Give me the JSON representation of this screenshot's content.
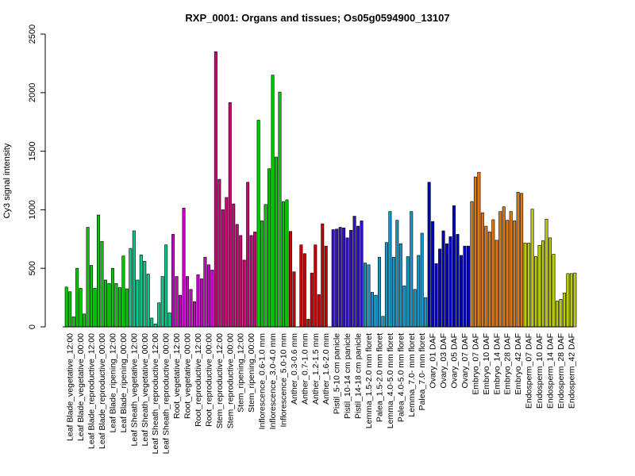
{
  "chart_data": {
    "type": "bar",
    "title": "RXP_0001: Organs and tissues; Os05g0594900_13107",
    "xlabel": "",
    "ylabel": "Cy3 signal intensity",
    "ylim": [
      0,
      2500
    ],
    "yticks": [
      0,
      500,
      1000,
      1500,
      2000,
      2500
    ],
    "grid": false,
    "legend": "none",
    "groups": [
      {
        "label": "Leaf Blade_vegetative_12:00",
        "color": "#00cc00",
        "values": [
          340,
          300,
          85
        ]
      },
      {
        "label": "Leaf Blade_vegetative_00:00",
        "color": "#00cc00",
        "values": [
          500,
          330,
          110
        ]
      },
      {
        "label": "Leaf Blade_reproductive_12:00",
        "color": "#00cc00",
        "values": [
          850,
          525,
          330
        ]
      },
      {
        "label": "Leaf Blade_reproductive_00:00",
        "color": "#00cc00",
        "values": [
          955,
          730,
          400
        ]
      },
      {
        "label": "Leaf Blade_ripening_12:00",
        "color": "#00cc00",
        "values": [
          370,
          500,
          370
        ]
      },
      {
        "label": "Leaf Blade_ripening_00:00",
        "color": "#00cc00",
        "values": [
          335,
          605,
          325
        ]
      },
      {
        "label": "Leaf Sheath_vegetative_12:00",
        "color": "#00cc88",
        "values": [
          670,
          820,
          400
        ]
      },
      {
        "label": "Leaf Sheath_vegetative_00:00",
        "color": "#00cc88",
        "values": [
          615,
          560,
          450
        ]
      },
      {
        "label": "Leaf Sheath_reproductive_12:00",
        "color": "#00cc88",
        "values": [
          75,
          25,
          205
        ]
      },
      {
        "label": "Leaf Sheath_reproductive_00:00",
        "color": "#00cc88",
        "values": [
          430,
          700,
          120
        ]
      },
      {
        "label": "Root_vegetative_12:00",
        "color": "#cc00cc",
        "values": [
          790,
          430,
          270
        ]
      },
      {
        "label": "Root_vegetative_00:00",
        "color": "#cc00cc",
        "values": [
          1015,
          430,
          320
        ]
      },
      {
        "label": "Root_reproductive_12:00",
        "color": "#cc00cc",
        "values": [
          215,
          445,
          410
        ]
      },
      {
        "label": "Root_reproductive_00:00",
        "color": "#cc00cc",
        "values": [
          595,
          530,
          485
        ]
      },
      {
        "label": "Stem_reproductive_12:00",
        "color": "#cc0077",
        "values": [
          2350,
          1260,
          1000
        ]
      },
      {
        "label": "Stem_reproductive_00:00",
        "color": "#cc0077",
        "values": [
          1105,
          1915,
          1050
        ]
      },
      {
        "label": "Stem_ripening_12:00",
        "color": "#cc0077",
        "values": [
          875,
          780,
          570
        ]
      },
      {
        "label": "Stem_ripening_00:00",
        "color": "#cc0077",
        "values": [
          1235,
          780,
          810
        ]
      },
      {
        "label": "Inflorescence_0.6-1.0 mm",
        "color": "#00cc00",
        "values": [
          1765,
          905,
          1045
        ]
      },
      {
        "label": "Inflorescence_3.0-4.0 mm",
        "color": "#00cc00",
        "values": [
          1350,
          2150,
          1450
        ]
      },
      {
        "label": "Inflorescence_5.0-10 mm",
        "color": "#00cc00",
        "values": [
          2005,
          1070,
          1085
        ]
      },
      {
        "label": "Anther_0.3-0.6 mm",
        "color": "#cc0000",
        "values": [
          815,
          470,
          null
        ]
      },
      {
        "label": "Anther_0.7-1.0 mm",
        "color": "#cc0000",
        "values": [
          700,
          625,
          65
        ]
      },
      {
        "label": "Anther_1.2-1.5 mm",
        "color": "#cc0000",
        "values": [
          460,
          700,
          275
        ]
      },
      {
        "label": "Anther_1.6-2.0 mm",
        "color": "#cc0000",
        "values": [
          880,
          690,
          null
        ]
      },
      {
        "label": "Pistil_5-10 cm panicle",
        "color": "#3311cc",
        "values": [
          830,
          835,
          850
        ]
      },
      {
        "label": "Pistil_10-14 cm panicle",
        "color": "#3311cc",
        "values": [
          845,
          760,
          825
        ]
      },
      {
        "label": "Pistil_14-18 cm panicle",
        "color": "#3311cc",
        "values": [
          945,
          860,
          905
        ]
      },
      {
        "label": "Lemma_1.5-2.0 mm floret",
        "color": "#1199cc",
        "values": [
          545,
          530,
          295
        ]
      },
      {
        "label": "Palea_1.5-2.0 mm floret",
        "color": "#1199cc",
        "values": [
          270,
          595,
          90
        ]
      },
      {
        "label": "Lemma_4.0-5.0 mm floret",
        "color": "#1199cc",
        "values": [
          720,
          985,
          595
        ]
      },
      {
        "label": "Palea_4.0-5.0 mm floret",
        "color": "#1199cc",
        "values": [
          910,
          710,
          350
        ]
      },
      {
        "label": "Lemma_7.0- mm floret",
        "color": "#1199cc",
        "values": [
          600,
          985,
          320
        ]
      },
      {
        "label": "Palea_7.0- mm floret",
        "color": "#1199cc",
        "values": [
          610,
          800,
          250
        ]
      },
      {
        "label": "Ovary_01 DAF",
        "color": "#0000cc",
        "values": [
          1235,
          900,
          540
        ]
      },
      {
        "label": "Ovary_03 DAF",
        "color": "#0000cc",
        "values": [
          665,
          820,
          710
        ]
      },
      {
        "label": "Ovary_05 DAF",
        "color": "#0000cc",
        "values": [
          770,
          1035,
          790
        ]
      },
      {
        "label": "Ovary_07 DAF",
        "color": "#0000cc",
        "values": [
          610,
          690,
          690
        ]
      },
      {
        "label": "Embryo_07 DAF",
        "color": "#dd7711",
        "values": [
          1070,
          1280,
          1320
        ]
      },
      {
        "label": "Embryo_10 DAF",
        "color": "#dd7711",
        "values": [
          975,
          860,
          810
        ]
      },
      {
        "label": "Embryo_14 DAF",
        "color": "#dd7711",
        "values": [
          915,
          740,
          985
        ]
      },
      {
        "label": "Embryo_28 DAF",
        "color": "#dd7711",
        "values": [
          1025,
          910,
          985
        ]
      },
      {
        "label": "Embryo_42 DAF",
        "color": "#dd7711",
        "values": [
          905,
          1150,
          1140
        ]
      },
      {
        "label": "Endosperm_07 DAF",
        "color": "#bbcc00",
        "values": [
          715,
          715,
          1005
        ]
      },
      {
        "label": "Endosperm_10 DAF",
        "color": "#bbcc00",
        "values": [
          600,
          695,
          735
        ]
      },
      {
        "label": "Endosperm_14 DAF",
        "color": "#bbcc00",
        "values": [
          920,
          760,
          620
        ]
      },
      {
        "label": "Endosperm_28 DAF",
        "color": "#bbcc00",
        "values": [
          220,
          235,
          290
        ]
      },
      {
        "label": "Endosperm_42 DAF",
        "color": "#bbcc00",
        "values": [
          455,
          455,
          460
        ]
      }
    ]
  }
}
